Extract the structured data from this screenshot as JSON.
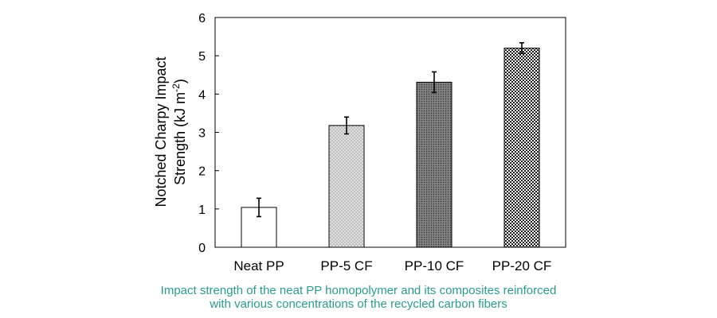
{
  "chart_data": {
    "type": "bar",
    "categories": [
      "Neat PP",
      "PP-5 CF",
      "PP-10 CF",
      "PP-20 CF"
    ],
    "values": [
      1.04,
      3.18,
      4.31,
      5.2
    ],
    "errors": [
      0.24,
      0.22,
      0.27,
      0.14
    ],
    "ylabel_line1": "Notched Charpy Impact",
    "ylabel_line2_prefix": "Strength (kJ m",
    "ylabel_superscript": "-2",
    "ylabel_line2_suffix": ")",
    "ylim": [
      0,
      6
    ],
    "yticks": [
      "0",
      "1",
      "2",
      "3",
      "4",
      "5",
      "6"
    ],
    "grid": false,
    "bar_fills": [
      "white",
      "light-dots",
      "dark-dots",
      "checker"
    ],
    "bar_colors": [
      "#ffffff",
      "#d9d9d9",
      "#8c8c8c",
      "#2b2b2b"
    ]
  },
  "caption": {
    "line1": "Impact strength of the neat PP homopolymer and its composites reinforced",
    "line2": "with various concentrations of the recycled carbon fibers"
  }
}
